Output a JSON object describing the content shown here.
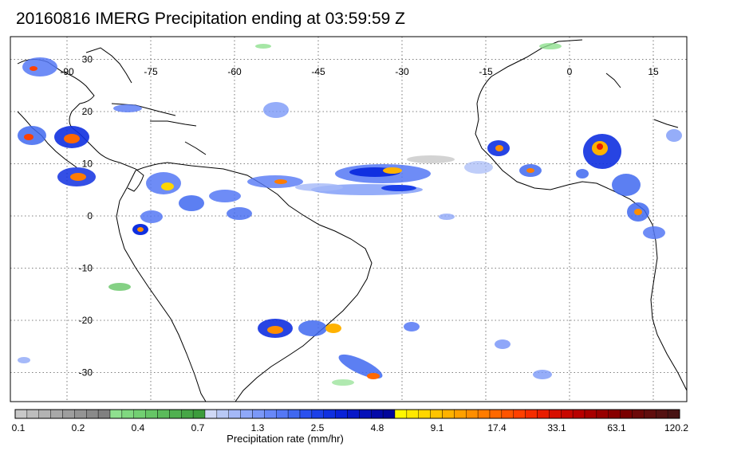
{
  "title": "20160816 IMERG Precipitation ending at 03:59:59 Z",
  "map": {
    "lon_labels": [
      "-90",
      "-75",
      "-60",
      "-45",
      "-30",
      "-15",
      "0",
      "15"
    ],
    "lat_labels": [
      "30",
      "20",
      "10",
      "0",
      "-10",
      "-20",
      "-30"
    ],
    "lon_values": [
      -90,
      -75,
      -60,
      -45,
      -30,
      -15,
      0,
      15
    ],
    "lat_values": [
      30,
      20,
      10,
      0,
      -10,
      -20,
      -30
    ]
  },
  "colorbar": {
    "label": "Precipitation rate (mm/hr)",
    "ticks": [
      "0.1",
      "0.2",
      "0.4",
      "0.7",
      "1.3",
      "2.5",
      "4.8",
      "9.1",
      "17.4",
      "33.1",
      "63.1",
      "120.2"
    ],
    "colors": [
      "#c8c8c8",
      "#bdbdbd",
      "#b3b3b3",
      "#a8a8a8",
      "#9e9e9e",
      "#949494",
      "#8a8a8a",
      "#808080",
      "#8fe08f",
      "#80d880",
      "#72cf72",
      "#66c566",
      "#5bbb5b",
      "#50b050",
      "#46a646",
      "#3c9c3c",
      "#cfd8f5",
      "#b8c8f5",
      "#a4b8f7",
      "#8fa8f8",
      "#7b98f8",
      "#6888f8",
      "#5578f5",
      "#4068f0",
      "#2a50ee",
      "#1c40e8",
      "#1030e0",
      "#0a22d8",
      "#0818c8",
      "#0510b8",
      "#0309a8",
      "#02059a",
      "#fff700",
      "#ffe800",
      "#ffd600",
      "#ffc400",
      "#ffb200",
      "#ffa000",
      "#ff8e00",
      "#ff7c00",
      "#ff6800",
      "#ff5400",
      "#ff4000",
      "#f52c00",
      "#e81c00",
      "#d80e00",
      "#c80600",
      "#b80000",
      "#a80000",
      "#980000",
      "#880000",
      "#7a0000",
      "#6c0808",
      "#600e0e",
      "#541212",
      "#481414"
    ]
  },
  "colors": {
    "grid": "#555555",
    "frame": "#000000",
    "coast": "#000000"
  }
}
